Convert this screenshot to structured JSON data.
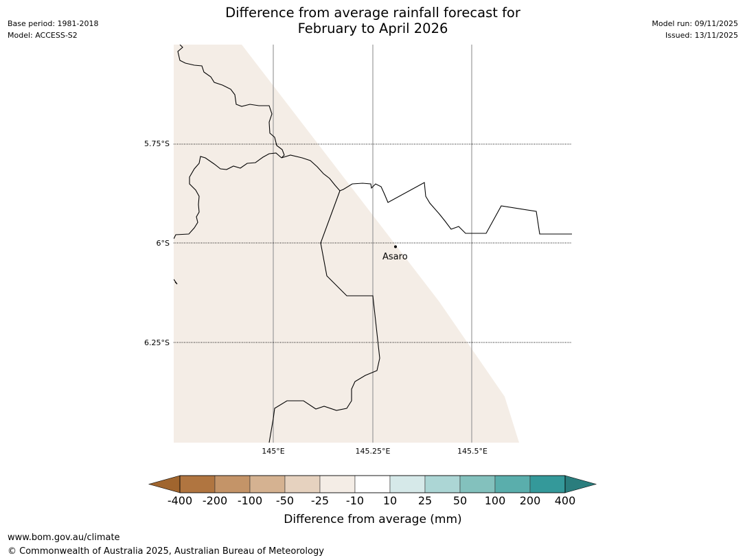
{
  "header": {
    "title_line1": "Difference from average rainfall forecast for",
    "title_line2": "February to April 2026",
    "base_period": "Base period: 1981-2018",
    "model": "Model: ACCESS-S2",
    "model_run": "Model run: 09/11/2025",
    "issued": "Issued: 13/11/2025"
  },
  "map": {
    "latitude_labels": [
      "5.75°S",
      "6°S",
      "6.25°S"
    ],
    "longitude_labels": [
      "145°E",
      "145.25°E",
      "145.5°E"
    ],
    "place": {
      "name": "Asaro"
    },
    "forecast_fill_category": "-25 to -10",
    "forecast_fill_color": "#f4ede6"
  },
  "colorbar": {
    "labels": [
      "-400",
      "-200",
      "-100",
      "-50",
      "-25",
      "-10",
      "10",
      "25",
      "50",
      "100",
      "200",
      "400"
    ],
    "colors": [
      "#a0652e",
      "#b07540",
      "#c49468",
      "#d5b291",
      "#e6d2bf",
      "#f4ede6",
      "#ffffff",
      "#d6e9e9",
      "#acd6d5",
      "#83c1bd",
      "#5aaeac",
      "#34999a",
      "#2a7d7d"
    ],
    "title": "Difference from average (mm)"
  },
  "footer": {
    "url": "www.bom.gov.au/climate",
    "copyright": "© Commonwealth of Australia 2025, Australian Bureau of Meteorology"
  }
}
